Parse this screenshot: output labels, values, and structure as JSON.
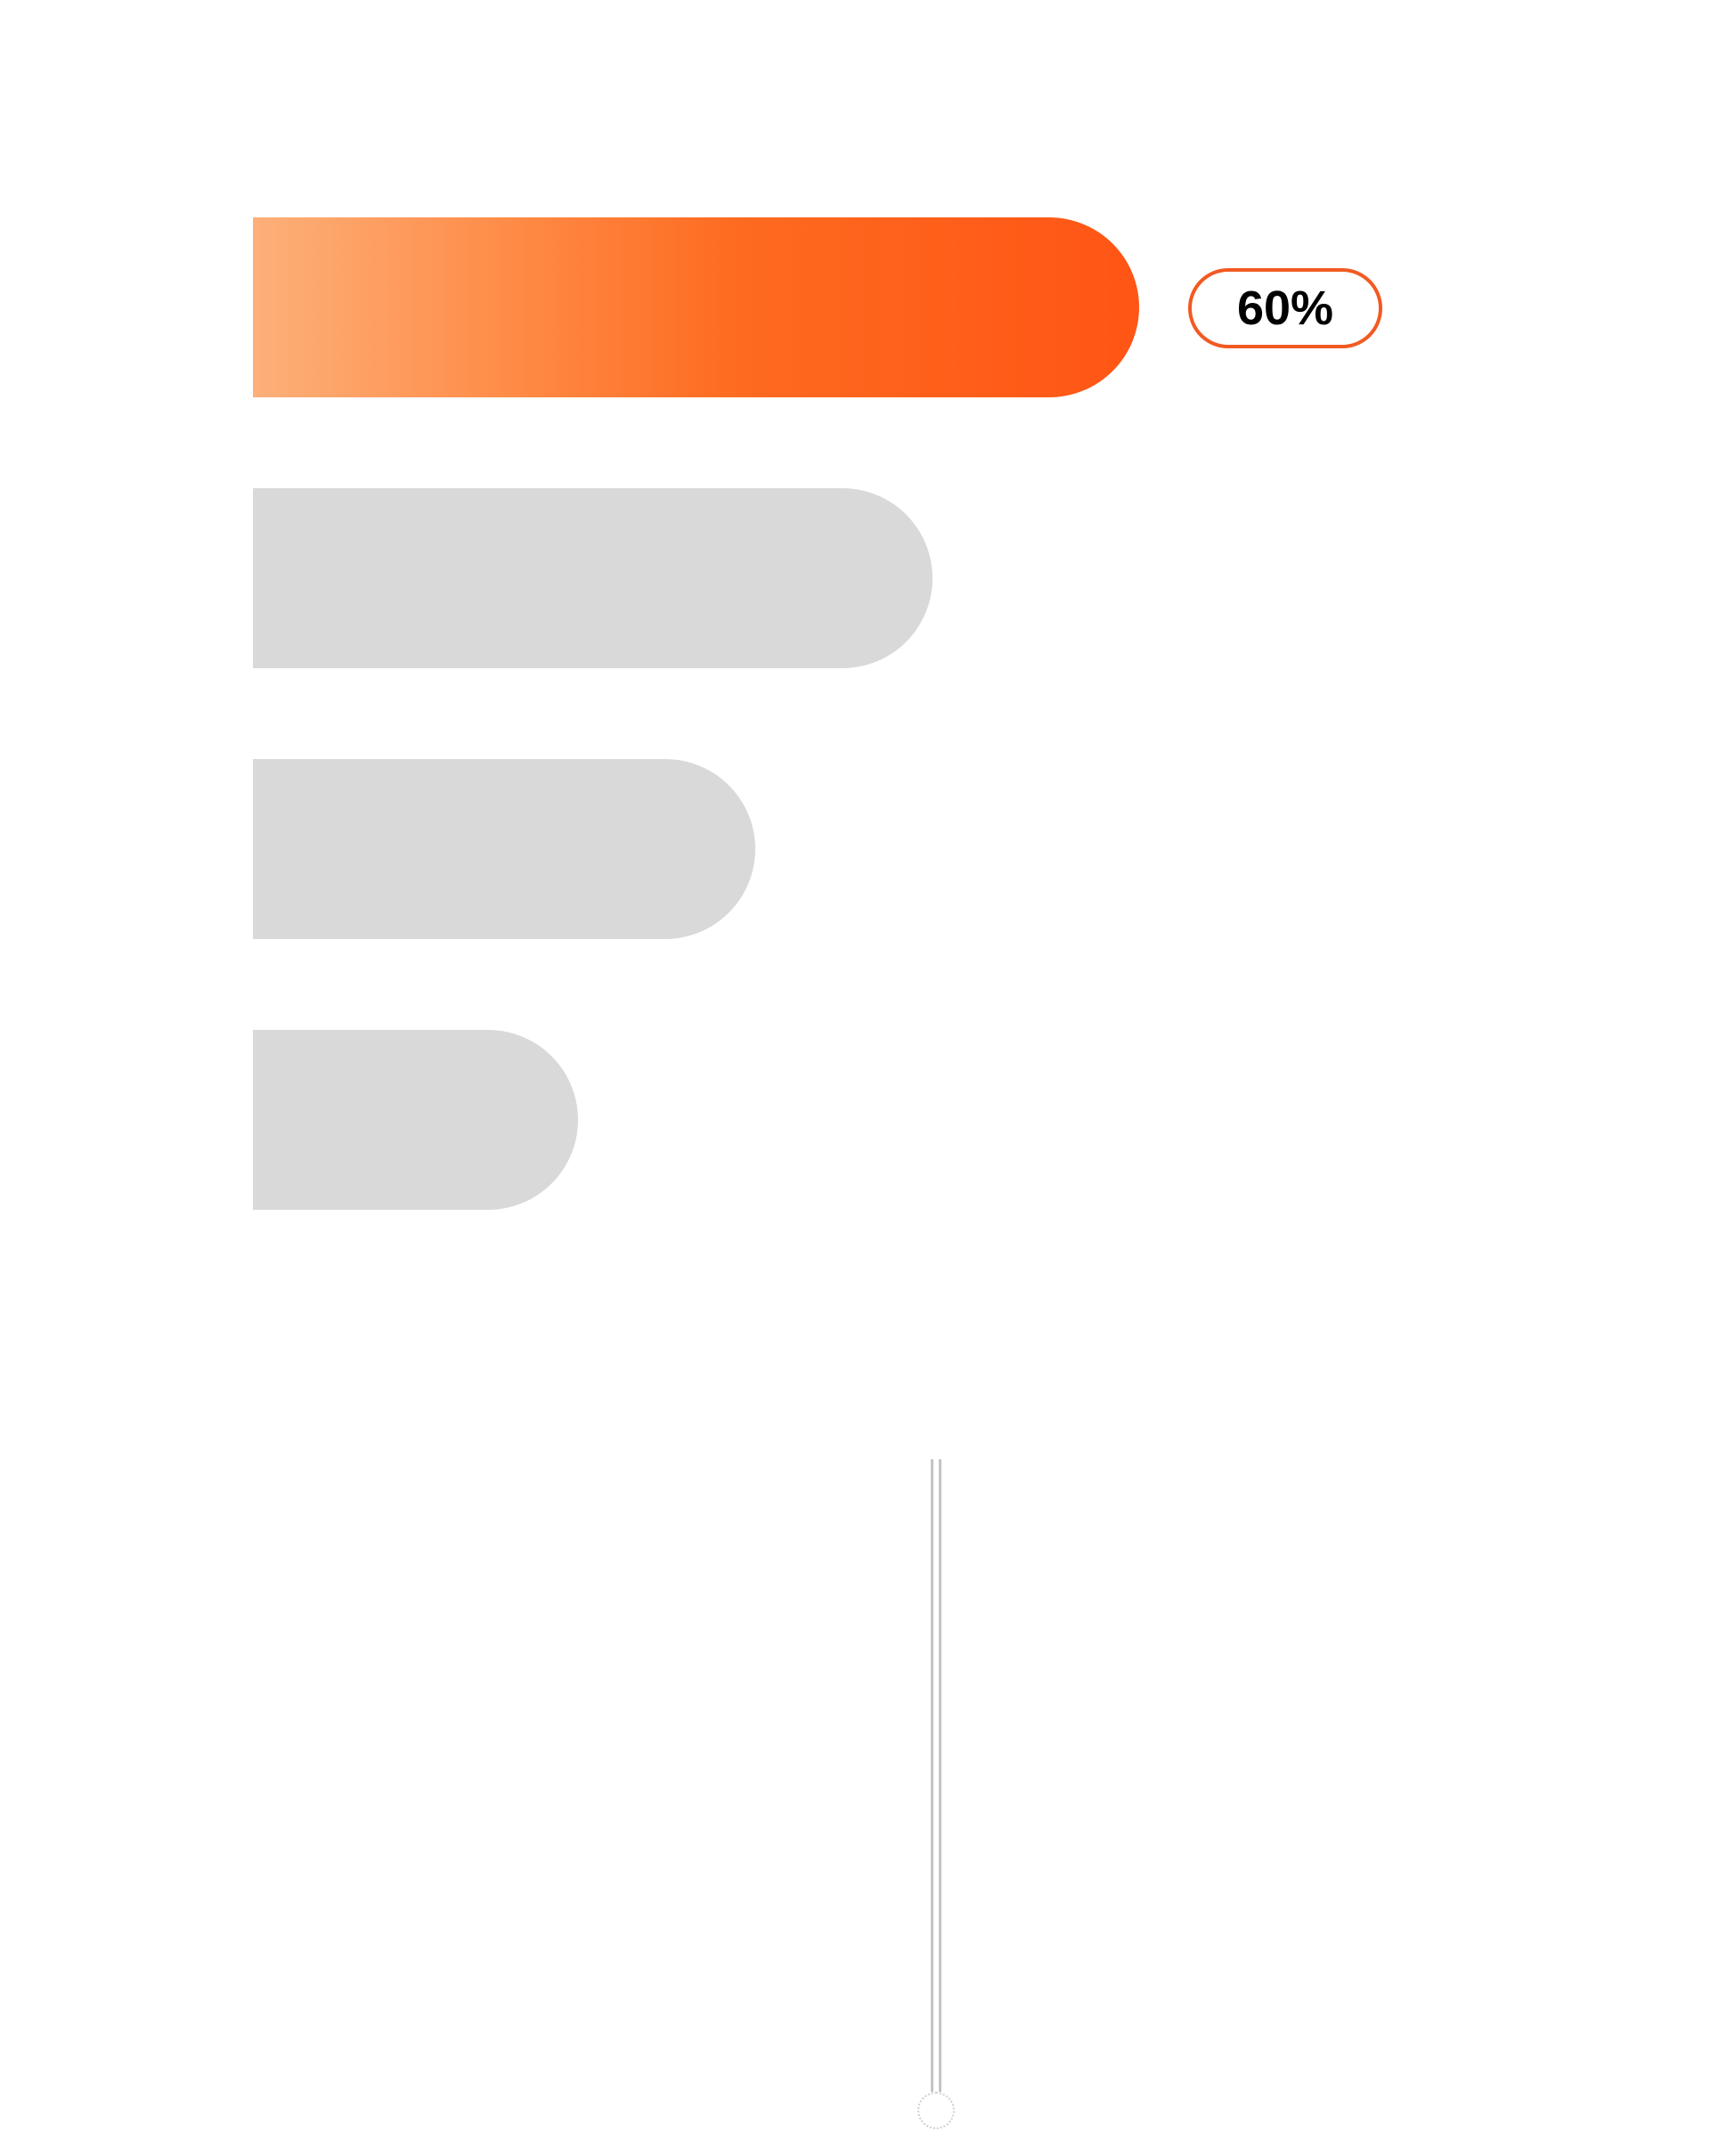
{
  "chart_data": {
    "type": "bar",
    "orientation": "horizontal",
    "categories": [
      "",
      "",
      "",
      ""
    ],
    "values": [
      60,
      46,
      34,
      22
    ],
    "highlight_index": 0,
    "highlight_label": "60%",
    "title": "",
    "xlabel": "",
    "ylabel": "",
    "xlim": [
      0,
      100
    ],
    "grid": false,
    "legend": "none",
    "colors": {
      "highlight_gradient_start": "#fdb07a",
      "highlight_gradient_end": "#ff5515",
      "bar": "#d9d9d9",
      "label_border": "#f15a22",
      "label_text": "#000000"
    }
  },
  "slider": {
    "value": 0,
    "track_color": "#c4c4c4",
    "handle_border_color": "#cfcfcf"
  }
}
